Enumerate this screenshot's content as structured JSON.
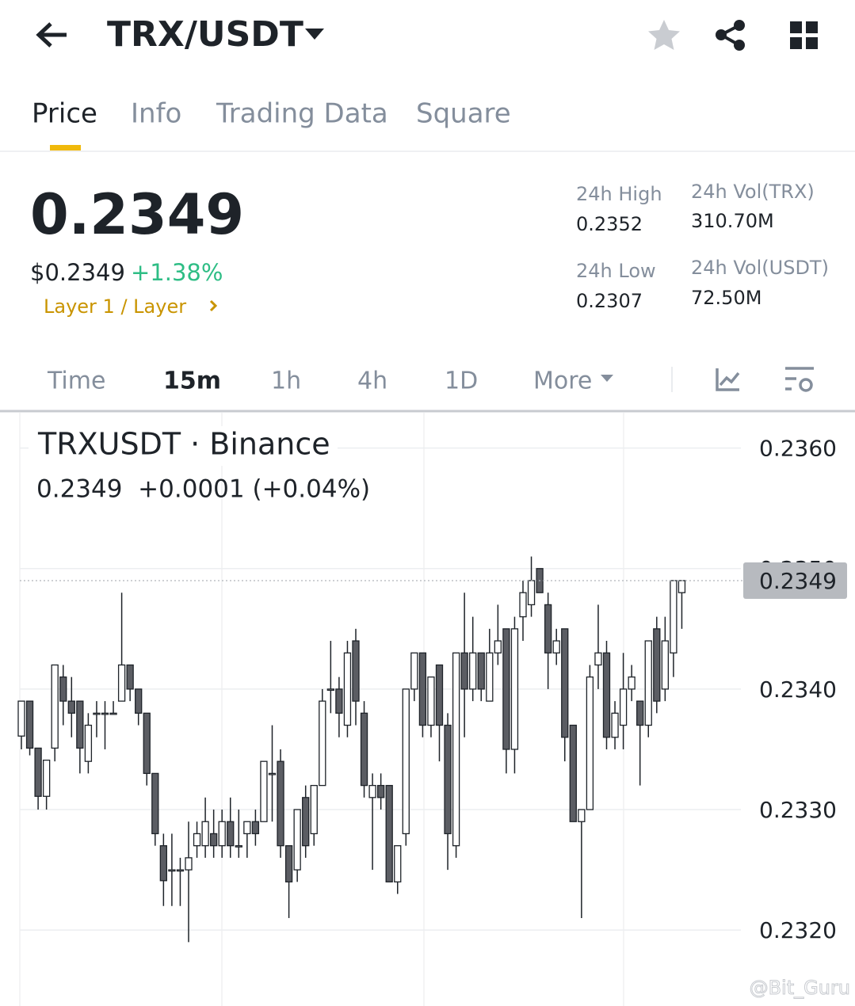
{
  "header": {
    "pair": "TRX/USDT"
  },
  "tabs": [
    "Price",
    "Info",
    "Trading Data",
    "Square"
  ],
  "ticker": {
    "price": "0.2349",
    "usd_price": "$0.2349",
    "change": "+1.38%",
    "tag": "Layer 1 / Layer",
    "stats": [
      {
        "label": "24h High",
        "value": "0.2352"
      },
      {
        "label": "24h Vol(TRX)",
        "value": "310.70M"
      },
      {
        "label": "24h Low",
        "value": "0.2307"
      },
      {
        "label": "24h Vol(USDT)",
        "value": "72.50M"
      }
    ]
  },
  "intervals": [
    "Time",
    "15m",
    "1h",
    "4h",
    "1D",
    "More"
  ],
  "watermark": "@Bit_Guru",
  "chart_data": {
    "type": "candlestick",
    "title": "TRXUSDT · Binance",
    "subtitle": "0.2349  +0.0001 (+0.04%)",
    "last_price": 0.2349,
    "last_price_label": "0.2349",
    "ylim": [
      0.23137,
      0.2363
    ],
    "yticks": [
      {
        "value": 0.236,
        "label": "0.2360"
      },
      {
        "value": 0.235,
        "label": "0.2350"
      },
      {
        "value": 0.234,
        "label": "0.2340"
      },
      {
        "value": 0.233,
        "label": "0.2330"
      },
      {
        "value": 0.232,
        "label": "0.2320"
      }
    ],
    "grid": true,
    "up_color": "#ffffff",
    "down_color": "#5b5d63",
    "open": [
      0.23361,
      0.2339,
      0.23351,
      0.23311,
      0.23351,
      0.2341,
      0.2339,
      0.2339,
      0.2334,
      0.2338,
      0.2338,
      0.2338,
      0.2339,
      0.2342,
      0.234,
      0.2338,
      0.2333,
      0.2327,
      0.2325,
      0.2325,
      0.2325,
      0.2327,
      0.2327,
      0.2328,
      0.2327,
      0.2329,
      0.2327,
      0.2328,
      0.2329,
      0.2329,
      0.2333,
      0.2334,
      0.2327,
      0.2325,
      0.2331,
      0.2328,
      0.2332,
      0.234,
      0.234,
      0.2337,
      0.2344,
      0.2338,
      0.2331,
      0.2332,
      0.2332,
      0.2324,
      0.2328,
      0.234,
      0.2343,
      0.2337,
      0.2342,
      0.2337,
      0.2327,
      0.2343,
      0.234,
      0.2343,
      0.2339,
      0.2343,
      0.2345,
      0.2335,
      0.2346,
      0.2347,
      0.235,
      0.2347,
      0.2343,
      0.2345,
      0.2337,
      0.2329,
      0.233,
      0.2342,
      0.2343,
      0.2336,
      0.2337,
      0.234,
      0.2339,
      0.2337,
      0.2345,
      0.234,
      0.2343,
      0.2348
    ],
    "high": [
      0.2339,
      0.2339,
      0.2335,
      0.2334,
      0.2342,
      0.2342,
      0.2341,
      0.2339,
      0.2338,
      0.2339,
      0.2339,
      0.2339,
      0.2348,
      0.2342,
      0.234,
      0.2338,
      0.2333,
      0.2328,
      0.2328,
      0.2326,
      0.2329,
      0.2329,
      0.2331,
      0.233,
      0.233,
      0.2331,
      0.233,
      0.2329,
      0.233,
      0.2334,
      0.2337,
      0.2335,
      0.2327,
      0.233,
      0.2332,
      0.2332,
      0.234,
      0.2344,
      0.2341,
      0.2344,
      0.2345,
      0.2339,
      0.2333,
      0.2333,
      0.2332,
      0.2327,
      0.234,
      0.2343,
      0.2343,
      0.2341,
      0.2342,
      0.2338,
      0.2343,
      0.2348,
      0.2346,
      0.2343,
      0.2345,
      0.2347,
      0.2345,
      0.2346,
      0.2349,
      0.2351,
      0.235,
      0.2348,
      0.2345,
      0.2345,
      0.2337,
      0.233,
      0.2342,
      0.2347,
      0.2344,
      0.2339,
      0.2343,
      0.2342,
      0.2339,
      0.2344,
      0.2346,
      0.2346,
      0.2349,
      0.2349
    ],
    "low": [
      0.2335,
      0.23345,
      0.233,
      0.233,
      0.2334,
      0.2337,
      0.2336,
      0.2333,
      0.2333,
      0.2336,
      0.2335,
      0.2338,
      0.2339,
      0.2339,
      0.2337,
      0.2332,
      0.2327,
      0.2322,
      0.2322,
      0.2322,
      0.2319,
      0.2326,
      0.2326,
      0.2326,
      0.2326,
      0.2326,
      0.2326,
      0.2326,
      0.2327,
      0.2329,
      0.2329,
      0.2326,
      0.2321,
      0.2324,
      0.2326,
      0.2327,
      0.2332,
      0.2338,
      0.2336,
      0.2336,
      0.2337,
      0.2331,
      0.2325,
      0.233,
      0.2324,
      0.2323,
      0.2327,
      0.2339,
      0.2336,
      0.2336,
      0.2334,
      0.2325,
      0.2326,
      0.2336,
      0.2339,
      0.2339,
      0.2339,
      0.2342,
      0.2333,
      0.2333,
      0.2344,
      0.2346,
      0.2348,
      0.234,
      0.2342,
      0.2334,
      0.2329,
      0.2321,
      0.233,
      0.234,
      0.2335,
      0.2335,
      0.2335,
      0.2339,
      0.2332,
      0.2336,
      0.2338,
      0.2339,
      0.2341,
      0.2345
    ],
    "close": [
      0.2339,
      0.23351,
      0.23311,
      0.23341,
      0.2342,
      0.2339,
      0.2338,
      0.23351,
      0.2337,
      0.2338,
      0.2338,
      0.2338,
      0.2342,
      0.234,
      0.2338,
      0.2333,
      0.2328,
      0.23241,
      0.2325,
      0.2325,
      0.2326,
      0.2328,
      0.2329,
      0.2327,
      0.2329,
      0.2327,
      0.2327,
      0.2329,
      0.2328,
      0.2334,
      0.2333,
      0.2327,
      0.2324,
      0.233,
      0.2327,
      0.2332,
      0.2339,
      0.234,
      0.2338,
      0.2343,
      0.2339,
      0.2332,
      0.2332,
      0.2331,
      0.2324,
      0.2327,
      0.234,
      0.2343,
      0.2337,
      0.2341,
      0.2337,
      0.2328,
      0.2343,
      0.234,
      0.2343,
      0.234,
      0.2343,
      0.2344,
      0.2335,
      0.2345,
      0.2348,
      0.2349,
      0.2348,
      0.2343,
      0.2344,
      0.2336,
      0.2329,
      0.233,
      0.2341,
      0.2343,
      0.2336,
      0.2338,
      0.234,
      0.2341,
      0.2337,
      0.2344,
      0.2339,
      0.2344,
      0.2349,
      0.2349
    ]
  }
}
